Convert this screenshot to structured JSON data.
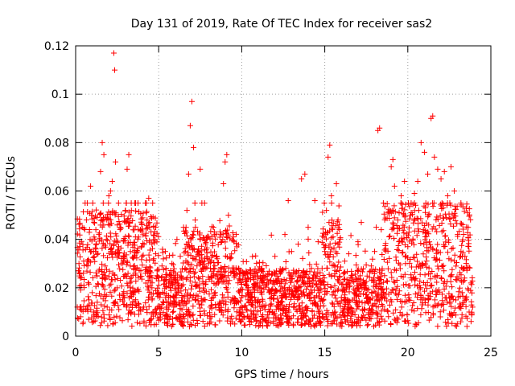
{
  "chart_data": {
    "type": "scatter",
    "title": "Day 131 of 2019, Rate Of TEC Index for receiver sas2",
    "xlabel": "GPS time / hours",
    "ylabel": "ROTI / TECUs",
    "xlim": [
      0,
      25
    ],
    "ylim": [
      0,
      0.12
    ],
    "xticks": [
      0,
      5,
      10,
      15,
      20,
      25
    ],
    "xtick_labels": [
      "0",
      "5",
      "10",
      "15",
      "20",
      "25"
    ],
    "yticks": [
      0,
      0.02,
      0.04,
      0.06,
      0.08,
      0.1,
      0.12
    ],
    "ytick_labels": [
      "0",
      "0.02",
      "0.04",
      "0.06",
      "0.08",
      "0.1",
      "0.12"
    ],
    "grid": true,
    "marker": "+",
    "color": "#ff0000",
    "series": [
      {
        "name": "ROTI",
        "points": [
          [
            0.1,
            0.012
          ],
          [
            0.2,
            0.03
          ],
          [
            0.3,
            0.008
          ],
          [
            0.4,
            0.045
          ],
          [
            0.5,
            0.021
          ],
          [
            0.6,
            0.011
          ],
          [
            0.7,
            0.055
          ],
          [
            0.8,
            0.015
          ],
          [
            0.9,
            0.062
          ],
          [
            1.0,
            0.018
          ],
          [
            1.1,
            0.009
          ],
          [
            1.2,
            0.035
          ],
          [
            1.3,
            0.014
          ],
          [
            1.4,
            0.042
          ],
          [
            1.5,
            0.068
          ],
          [
            1.6,
            0.08
          ],
          [
            1.7,
            0.075
          ],
          [
            1.8,
            0.025
          ],
          [
            1.9,
            0.012
          ],
          [
            2.0,
            0.058
          ],
          [
            2.1,
            0.06
          ],
          [
            2.2,
            0.064
          ],
          [
            2.3,
            0.117
          ],
          [
            2.35,
            0.11
          ],
          [
            2.4,
            0.072
          ],
          [
            2.5,
            0.02
          ],
          [
            2.6,
            0.011
          ],
          [
            2.7,
            0.045
          ],
          [
            2.8,
            0.03
          ],
          [
            2.9,
            0.016
          ],
          [
            3.0,
            0.052
          ],
          [
            3.1,
            0.069
          ],
          [
            3.2,
            0.075
          ],
          [
            3.3,
            0.035
          ],
          [
            3.4,
            0.013
          ],
          [
            3.5,
            0.028
          ],
          [
            3.6,
            0.041
          ],
          [
            3.7,
            0.019
          ],
          [
            3.8,
            0.009
          ],
          [
            3.9,
            0.044
          ],
          [
            4.0,
            0.033
          ],
          [
            4.1,
            0.012
          ],
          [
            4.2,
            0.026
          ],
          [
            4.3,
            0.048
          ],
          [
            4.4,
            0.057
          ],
          [
            4.5,
            0.021
          ],
          [
            4.6,
            0.015
          ],
          [
            4.7,
            0.032
          ],
          [
            4.8,
            0.011
          ],
          [
            4.9,
            0.025
          ],
          [
            5.0,
            0.018
          ],
          [
            5.1,
            0.007
          ],
          [
            5.2,
            0.029
          ],
          [
            5.3,
            0.014
          ],
          [
            5.4,
            0.035
          ],
          [
            5.5,
            0.009
          ],
          [
            5.6,
            0.022
          ],
          [
            5.7,
            0.016
          ],
          [
            5.8,
            0.03
          ],
          [
            5.9,
            0.012
          ],
          [
            6.0,
            0.026
          ],
          [
            6.1,
            0.04
          ],
          [
            6.2,
            0.018
          ],
          [
            6.3,
            0.033
          ],
          [
            6.4,
            0.011
          ],
          [
            6.5,
            0.045
          ],
          [
            6.6,
            0.028
          ],
          [
            6.7,
            0.052
          ],
          [
            6.8,
            0.067
          ],
          [
            6.9,
            0.087
          ],
          [
            7.0,
            0.097
          ],
          [
            7.1,
            0.078
          ],
          [
            7.2,
            0.048
          ],
          [
            7.3,
            0.021
          ],
          [
            7.4,
            0.035
          ],
          [
            7.5,
            0.069
          ],
          [
            7.6,
            0.055
          ],
          [
            7.7,
            0.028
          ],
          [
            7.8,
            0.015
          ],
          [
            7.9,
            0.04
          ],
          [
            8.0,
            0.03
          ],
          [
            8.1,
            0.012
          ],
          [
            8.2,
            0.024
          ],
          [
            8.3,
            0.045
          ],
          [
            8.4,
            0.018
          ],
          [
            8.5,
            0.033
          ],
          [
            8.6,
            0.022
          ],
          [
            8.7,
            0.011
          ],
          [
            8.8,
            0.039
          ],
          [
            8.9,
            0.063
          ],
          [
            9.0,
            0.072
          ],
          [
            9.1,
            0.075
          ],
          [
            9.2,
            0.05
          ],
          [
            9.3,
            0.032
          ],
          [
            9.4,
            0.015
          ],
          [
            9.5,
            0.041
          ],
          [
            9.6,
            0.025
          ],
          [
            9.7,
            0.014
          ],
          [
            9.8,
            0.028
          ],
          [
            9.9,
            0.019
          ],
          [
            10.0,
            0.012
          ],
          [
            10.2,
            0.024
          ],
          [
            10.4,
            0.017
          ],
          [
            10.6,
            0.009
          ],
          [
            10.8,
            0.021
          ],
          [
            11.0,
            0.015
          ],
          [
            11.2,
            0.028
          ],
          [
            11.4,
            0.011
          ],
          [
            11.6,
            0.022
          ],
          [
            11.8,
            0.016
          ],
          [
            12.0,
            0.033
          ],
          [
            12.2,
            0.012
          ],
          [
            12.4,
            0.027
          ],
          [
            12.6,
            0.042
          ],
          [
            12.8,
            0.056
          ],
          [
            13.0,
            0.035
          ],
          [
            13.2,
            0.019
          ],
          [
            13.4,
            0.038
          ],
          [
            13.6,
            0.065
          ],
          [
            13.8,
            0.067
          ],
          [
            14.0,
            0.045
          ],
          [
            14.2,
            0.028
          ],
          [
            14.4,
            0.056
          ],
          [
            14.6,
            0.039
          ],
          [
            14.8,
            0.022
          ],
          [
            15.0,
            0.035
          ],
          [
            15.1,
            0.052
          ],
          [
            15.2,
            0.074
          ],
          [
            15.3,
            0.079
          ],
          [
            15.4,
            0.058
          ],
          [
            15.5,
            0.041
          ],
          [
            15.6,
            0.029
          ],
          [
            15.7,
            0.063
          ],
          [
            15.8,
            0.048
          ],
          [
            15.9,
            0.022
          ],
          [
            16.0,
            0.016
          ],
          [
            16.2,
            0.031
          ],
          [
            16.4,
            0.012
          ],
          [
            16.6,
            0.025
          ],
          [
            16.8,
            0.018
          ],
          [
            17.0,
            0.039
          ],
          [
            17.2,
            0.047
          ],
          [
            17.4,
            0.022
          ],
          [
            17.6,
            0.014
          ],
          [
            17.8,
            0.029
          ],
          [
            18.0,
            0.035
          ],
          [
            18.1,
            0.045
          ],
          [
            18.2,
            0.085
          ],
          [
            18.3,
            0.086
          ],
          [
            18.4,
            0.044
          ],
          [
            18.6,
            0.025
          ],
          [
            18.8,
            0.051
          ],
          [
            19.0,
            0.07
          ],
          [
            19.1,
            0.073
          ],
          [
            19.2,
            0.062
          ],
          [
            19.4,
            0.048
          ],
          [
            19.6,
            0.058
          ],
          [
            19.8,
            0.064
          ],
          [
            20.0,
            0.037
          ],
          [
            20.2,
            0.055
          ],
          [
            20.4,
            0.059
          ],
          [
            20.6,
            0.064
          ],
          [
            20.8,
            0.08
          ],
          [
            21.0,
            0.076
          ],
          [
            21.2,
            0.067
          ],
          [
            21.4,
            0.09
          ],
          [
            21.5,
            0.091
          ],
          [
            21.6,
            0.074
          ],
          [
            21.8,
            0.069
          ],
          [
            22.0,
            0.065
          ],
          [
            22.2,
            0.068
          ],
          [
            22.4,
            0.058
          ],
          [
            22.6,
            0.07
          ],
          [
            22.8,
            0.06
          ],
          [
            23.0,
            0.042
          ],
          [
            23.2,
            0.035
          ],
          [
            23.4,
            0.028
          ],
          [
            23.6,
            0.051
          ],
          [
            23.8,
            0.022
          ],
          [
            23.9,
            0.012
          ]
        ]
      }
    ]
  }
}
